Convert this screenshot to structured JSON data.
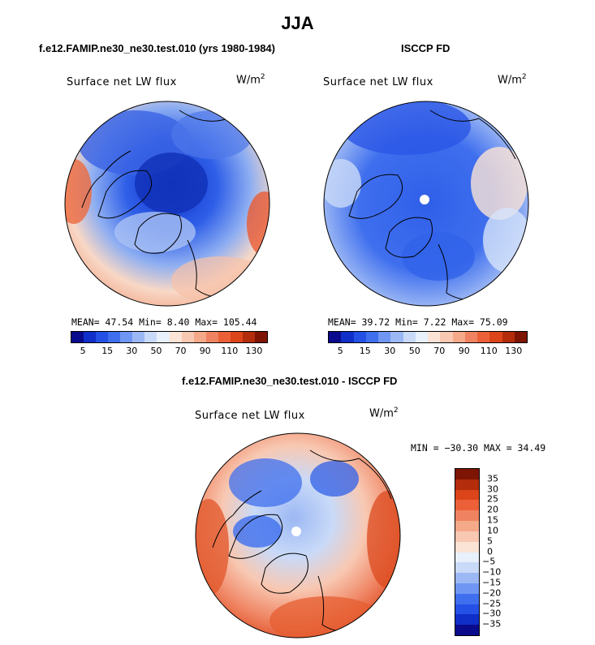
{
  "main_title": "JJA",
  "panels": [
    {
      "title": "f.e12.FAMIP.ne30_ne30.test.010 (yrs 1980-1984)",
      "plot_title": "Surface net LW flux",
      "units_base": "W/m",
      "units_exp": "2",
      "stats": "MEAN=  47.54  Min=   8.40  Max= 105.44",
      "colorbar_labels": [
        "5",
        "15",
        "30",
        "50",
        "70",
        "90",
        "110",
        "130"
      ]
    },
    {
      "title": "ISCCP FD",
      "plot_title": "Surface net LW flux",
      "units_base": "W/m",
      "units_exp": "2",
      "stats": "MEAN=  39.72  Min=   7.22  Max=  75.09",
      "colorbar_labels": [
        "5",
        "15",
        "30",
        "50",
        "70",
        "90",
        "110",
        "130"
      ]
    }
  ],
  "diff": {
    "title": "f.e12.FAMIP.ne30_ne30.test.010 - ISCCP FD",
    "plot_title": "Surface net LW flux",
    "units_base": "W/m",
    "units_exp": "2",
    "stats": "MIN = −30.30 MAX =  34.49",
    "colorbar_labels": [
      "35",
      "30",
      "25",
      "20",
      "15",
      "10",
      "5",
      "0",
      "−5",
      "−10",
      "−15",
      "−20",
      "−25",
      "−30",
      "−35"
    ]
  },
  "colors": {
    "abs_scale": [
      "#0a0a8c",
      "#0f2fc8",
      "#2450e6",
      "#3f6fee",
      "#6f96f2",
      "#9cb8f4",
      "#c9daf8",
      "#e7f0fb",
      "#fbe3d6",
      "#f8c8b2",
      "#f4a988",
      "#ef8260",
      "#eb6038",
      "#dc4419",
      "#b32c0c",
      "#7e1404"
    ],
    "diff_scale": [
      "#7e1404",
      "#b32c0c",
      "#dc4419",
      "#eb6038",
      "#ef8260",
      "#f4a988",
      "#f8c8b2",
      "#fbe3d6",
      "#e7f0fb",
      "#c9daf8",
      "#9cb8f4",
      "#6f96f2",
      "#3f6fee",
      "#2450e6",
      "#0f2fc8",
      "#0a0a8c"
    ]
  }
}
